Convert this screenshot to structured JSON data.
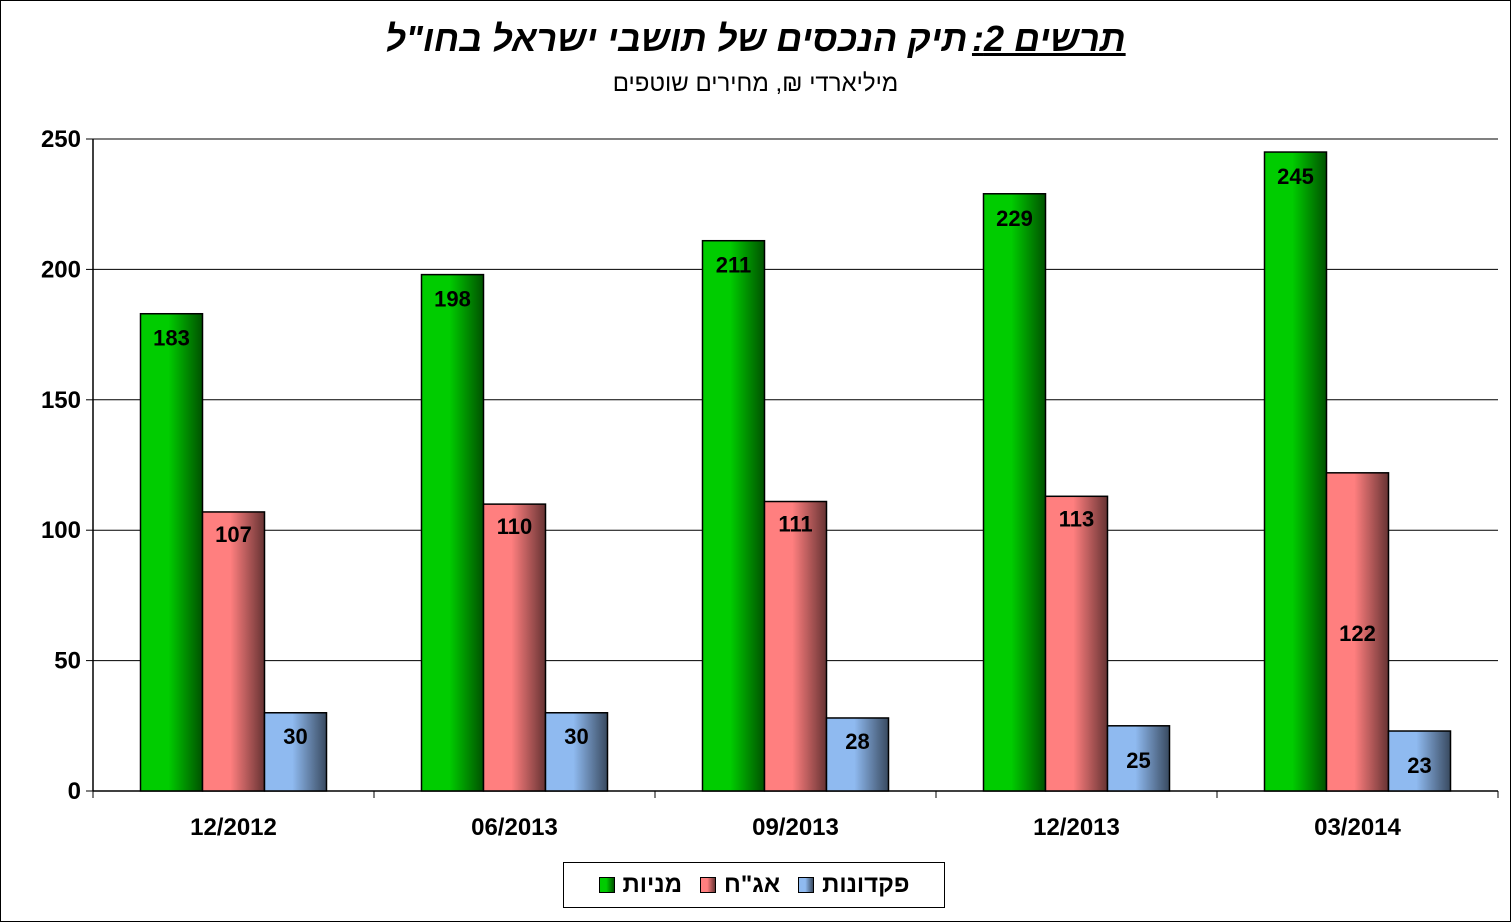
{
  "title_prefix": "תרשים 2:",
  "title_main": "תיק הנכסים של תושבי ישראל בחו\"ל",
  "subtitle": "מיליארדי ₪, מחירים שוטפים",
  "chart_data": {
    "type": "bar",
    "categories": [
      "12/2012",
      "06/2013",
      "09/2013",
      "12/2013",
      "03/2014"
    ],
    "series": [
      {
        "name": "מניות",
        "values": [
          183,
          198,
          211,
          229,
          245
        ],
        "color": "#00cc00"
      },
      {
        "name": "אג\"ח",
        "values": [
          107,
          110,
          111,
          113,
          122
        ],
        "color": "#ff7f7f"
      },
      {
        "name": "פקדונות",
        "values": [
          30,
          30,
          28,
          25,
          23
        ],
        "color": "#8fbaf0"
      }
    ],
    "ylim": [
      0,
      250
    ],
    "yticks": [
      "0",
      "50",
      "100",
      "150",
      "200",
      "250"
    ],
    "grid": true,
    "legend_position": "bottom"
  }
}
